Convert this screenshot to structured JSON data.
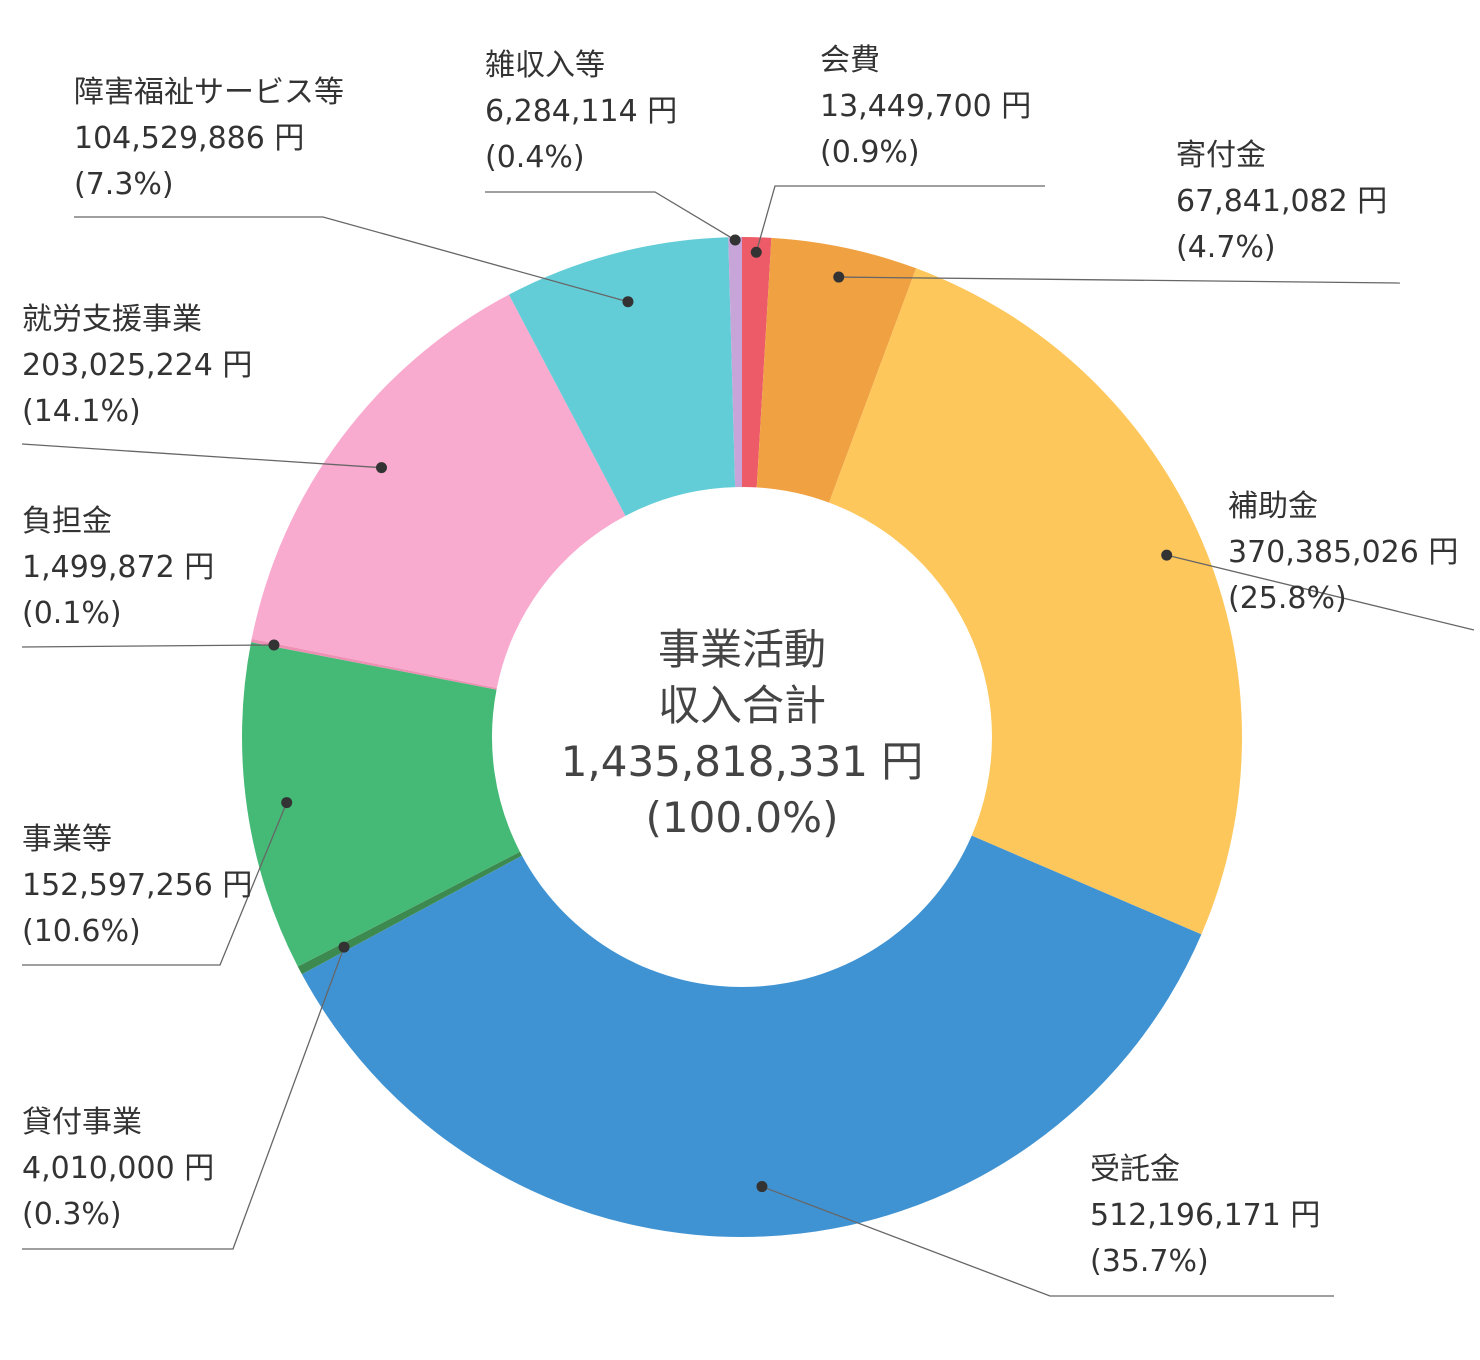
{
  "chart_data": {
    "type": "pie",
    "center": {
      "line1": "事業活動",
      "line2": "収入合計",
      "total": "1,435,818,331 円",
      "percent": "(100.0%)"
    },
    "slices": [
      {
        "key": "kaihi",
        "name": "会費",
        "amount": "13,449,700 円",
        "percent_label": "(0.9%)",
        "value": 13449700,
        "color": "#EC5B67"
      },
      {
        "key": "kifukin",
        "name": "寄付金",
        "amount": "67,841,082 円",
        "percent_label": "(4.7%)",
        "value": 67841082,
        "color": "#F0A243"
      },
      {
        "key": "hojokin",
        "name": "補助金",
        "amount": "370,385,026 円",
        "percent_label": "(25.8%)",
        "value": 370385026,
        "color": "#FEC75C"
      },
      {
        "key": "jutakukin",
        "name": "受託金",
        "amount": "512,196,171 円",
        "percent_label": "(35.7%)",
        "value": 512196171,
        "color": "#4093D3"
      },
      {
        "key": "kashitsuke",
        "name": "貸付事業",
        "amount": "4,010,000 円",
        "percent_label": "(0.3%)",
        "value": 4010000,
        "color": "#3C8A50"
      },
      {
        "key": "jigyoto",
        "name": "事業等",
        "amount": "152,597,256 円",
        "percent_label": "(10.6%)",
        "value": 152597256,
        "color": "#45BA76"
      },
      {
        "key": "futankin",
        "name": "負担金",
        "amount": "1,499,872 円",
        "percent_label": "(0.1%)",
        "value": 1499872,
        "color": "#EE8FB4"
      },
      {
        "key": "shuro",
        "name": "就労支援事業",
        "amount": "203,025,224 円",
        "percent_label": "(14.1%)",
        "value": 203025224,
        "color": "#F9AACF"
      },
      {
        "key": "shogai",
        "name": "障害福祉サービス等",
        "amount": "104,529,886 円",
        "percent_label": "(7.3%)",
        "value": 104529886,
        "color": "#63CDD7"
      },
      {
        "key": "zatsu",
        "name": "雑収入等",
        "amount": "6,284,114 円",
        "percent_label": "(0.4%)",
        "value": 6284114,
        "color": "#C7A5D8"
      }
    ]
  }
}
